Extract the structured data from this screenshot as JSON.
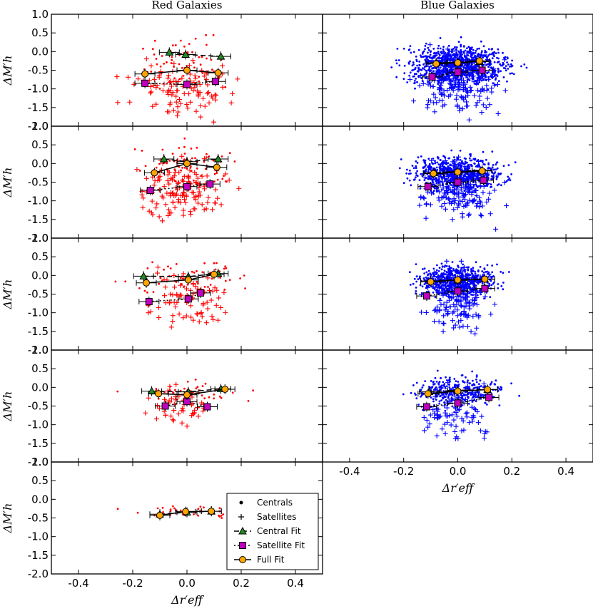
{
  "chart_data": {
    "type": "scatter",
    "column_titles": [
      "Red Galaxies",
      "Blue Galaxies"
    ],
    "xlabel": "Δr′eff",
    "ylabel": "ΔM′h",
    "xlim": [
      -0.5,
      0.5
    ],
    "ylim": [
      -2.0,
      1.0
    ],
    "xticks": [
      -0.4,
      -0.2,
      0.0,
      0.2,
      0.4
    ],
    "xtick_labels": [
      "-0.4",
      "-0.2",
      "0.0",
      "0.2",
      "0.4"
    ],
    "yticks": [
      -2.0,
      -1.5,
      -1.0,
      -0.5,
      0.0,
      0.5,
      1.0
    ],
    "ytick_labels": [
      "-2.0",
      "-1.5",
      "-1.0",
      "-0.5",
      "0.0",
      "0.5",
      "1.0"
    ],
    "colors": {
      "red": "#ff0000",
      "blue": "#0000ff",
      "central_fit": "#228b22",
      "satellite_fit": "#bf00bf",
      "full_fit": "#ffa500"
    },
    "legend": {
      "location": "lower-right of bottom-left panel",
      "entries": [
        "Centrals",
        "Satellites",
        "Central Fit",
        "Satellite Fit",
        "Full Fit"
      ]
    },
    "panels": [
      {
        "row": 0,
        "col": "red",
        "central_fit": [
          [
            -0.065,
            -0.02
          ],
          [
            -0.005,
            -0.08
          ],
          [
            0.125,
            -0.13
          ]
        ],
        "satellite_fit": [
          [
            -0.155,
            -0.85
          ],
          [
            0.0,
            -0.88
          ],
          [
            0.105,
            -0.8
          ]
        ],
        "full_fit": [
          [
            -0.155,
            -0.6
          ],
          [
            0.0,
            -0.5
          ],
          [
            0.115,
            -0.57
          ]
        ]
      },
      {
        "row": 0,
        "col": "blue",
        "central_fit": [
          [
            -0.08,
            -0.3
          ],
          [
            0.0,
            -0.29
          ],
          [
            0.08,
            -0.27
          ]
        ],
        "satellite_fit": [
          [
            -0.095,
            -0.68
          ],
          [
            0.0,
            -0.55
          ],
          [
            0.09,
            -0.5
          ]
        ],
        "full_fit": [
          [
            -0.08,
            -0.33
          ],
          [
            0.0,
            -0.3
          ],
          [
            0.08,
            -0.25
          ]
        ]
      },
      {
        "row": 1,
        "col": "red",
        "central_fit": [
          [
            -0.085,
            0.12
          ],
          [
            0.0,
            0.05
          ],
          [
            0.115,
            0.12
          ]
        ],
        "satellite_fit": [
          [
            -0.135,
            -0.72
          ],
          [
            0.0,
            -0.62
          ],
          [
            0.085,
            -0.55
          ]
        ],
        "full_fit": [
          [
            -0.12,
            -0.25
          ],
          [
            0.0,
            0.0
          ],
          [
            0.11,
            -0.1
          ]
        ]
      },
      {
        "row": 1,
        "col": "blue",
        "central_fit": [
          [
            -0.085,
            -0.25
          ],
          [
            0.0,
            -0.22
          ],
          [
            0.09,
            -0.18
          ]
        ],
        "satellite_fit": [
          [
            -0.11,
            -0.62
          ],
          [
            0.0,
            -0.5
          ],
          [
            0.095,
            -0.45
          ]
        ],
        "full_fit": [
          [
            -0.09,
            -0.27
          ],
          [
            0.0,
            -0.23
          ],
          [
            0.09,
            -0.2
          ]
        ]
      },
      {
        "row": 2,
        "col": "red",
        "central_fit": [
          [
            -0.16,
            -0.02
          ],
          [
            0.005,
            -0.03
          ],
          [
            0.115,
            0.05
          ]
        ],
        "satellite_fit": [
          [
            -0.14,
            -0.7
          ],
          [
            0.005,
            -0.63
          ],
          [
            0.05,
            -0.47
          ]
        ],
        "full_fit": [
          [
            -0.15,
            -0.2
          ],
          [
            0.005,
            -0.12
          ],
          [
            0.1,
            0.03
          ]
        ]
      },
      {
        "row": 2,
        "col": "blue",
        "central_fit": [
          [
            -0.1,
            -0.15
          ],
          [
            0.0,
            -0.13
          ],
          [
            0.1,
            -0.1
          ]
        ],
        "satellite_fit": [
          [
            -0.115,
            -0.55
          ],
          [
            0.0,
            -0.42
          ],
          [
            0.1,
            -0.35
          ]
        ],
        "full_fit": [
          [
            -0.1,
            -0.17
          ],
          [
            0.0,
            -0.12
          ],
          [
            0.1,
            -0.1
          ]
        ]
      },
      {
        "row": 3,
        "col": "red",
        "central_fit": [
          [
            -0.13,
            -0.1
          ],
          [
            0.005,
            -0.12
          ],
          [
            0.125,
            -0.04
          ]
        ],
        "satellite_fit": [
          [
            -0.08,
            -0.5
          ],
          [
            0.0,
            -0.38
          ],
          [
            0.075,
            -0.52
          ]
        ],
        "full_fit": [
          [
            -0.105,
            -0.17
          ],
          [
            0.0,
            -0.2
          ],
          [
            0.14,
            -0.05
          ]
        ]
      },
      {
        "row": 3,
        "col": "blue",
        "central_fit": [
          [
            -0.105,
            -0.12
          ],
          [
            0.0,
            -0.08
          ],
          [
            0.11,
            -0.06
          ]
        ],
        "satellite_fit": [
          [
            -0.115,
            -0.52
          ],
          [
            0.0,
            -0.42
          ],
          [
            0.115,
            -0.27
          ]
        ],
        "full_fit": [
          [
            -0.11,
            -0.17
          ],
          [
            0.0,
            -0.1
          ],
          [
            0.11,
            -0.06
          ]
        ]
      },
      {
        "row": 4,
        "col": "red",
        "central_fit": [
          [
            -0.1,
            -0.4
          ],
          [
            0.0,
            -0.35
          ],
          [
            0.09,
            -0.32
          ]
        ],
        "satellite_fit": [],
        "full_fit": [
          [
            -0.1,
            -0.43
          ],
          [
            -0.005,
            -0.33
          ],
          [
            0.09,
            -0.32
          ]
        ]
      }
    ]
  }
}
